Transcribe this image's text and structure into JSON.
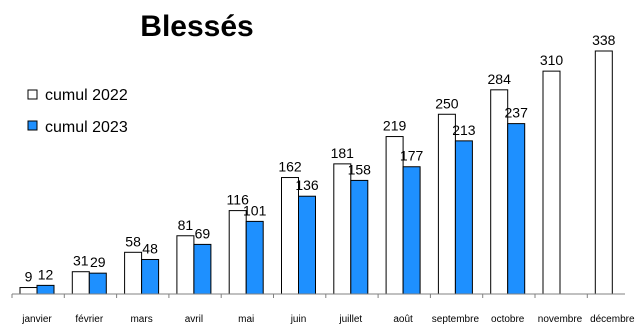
{
  "chart_data": {
    "type": "bar",
    "title": "Blessés",
    "categories": [
      "janvier",
      "février",
      "mars",
      "avril",
      "mai",
      "juin",
      "juillet",
      "août",
      "septembre",
      "octobre",
      "novembre",
      "décembre"
    ],
    "series": [
      {
        "name": "cumul 2022",
        "values": [
          9,
          31,
          58,
          81,
          116,
          162,
          181,
          219,
          250,
          284,
          310,
          338
        ],
        "color": "#ffffff"
      },
      {
        "name": "cumul 2023",
        "values": [
          12,
          29,
          48,
          69,
          101,
          136,
          158,
          177,
          213,
          237,
          null,
          null
        ],
        "color": "#1e90ff"
      }
    ],
    "ylim": [
      0,
      338
    ],
    "grid": false,
    "legend": "top-left",
    "xlabel": "",
    "ylabel": ""
  }
}
